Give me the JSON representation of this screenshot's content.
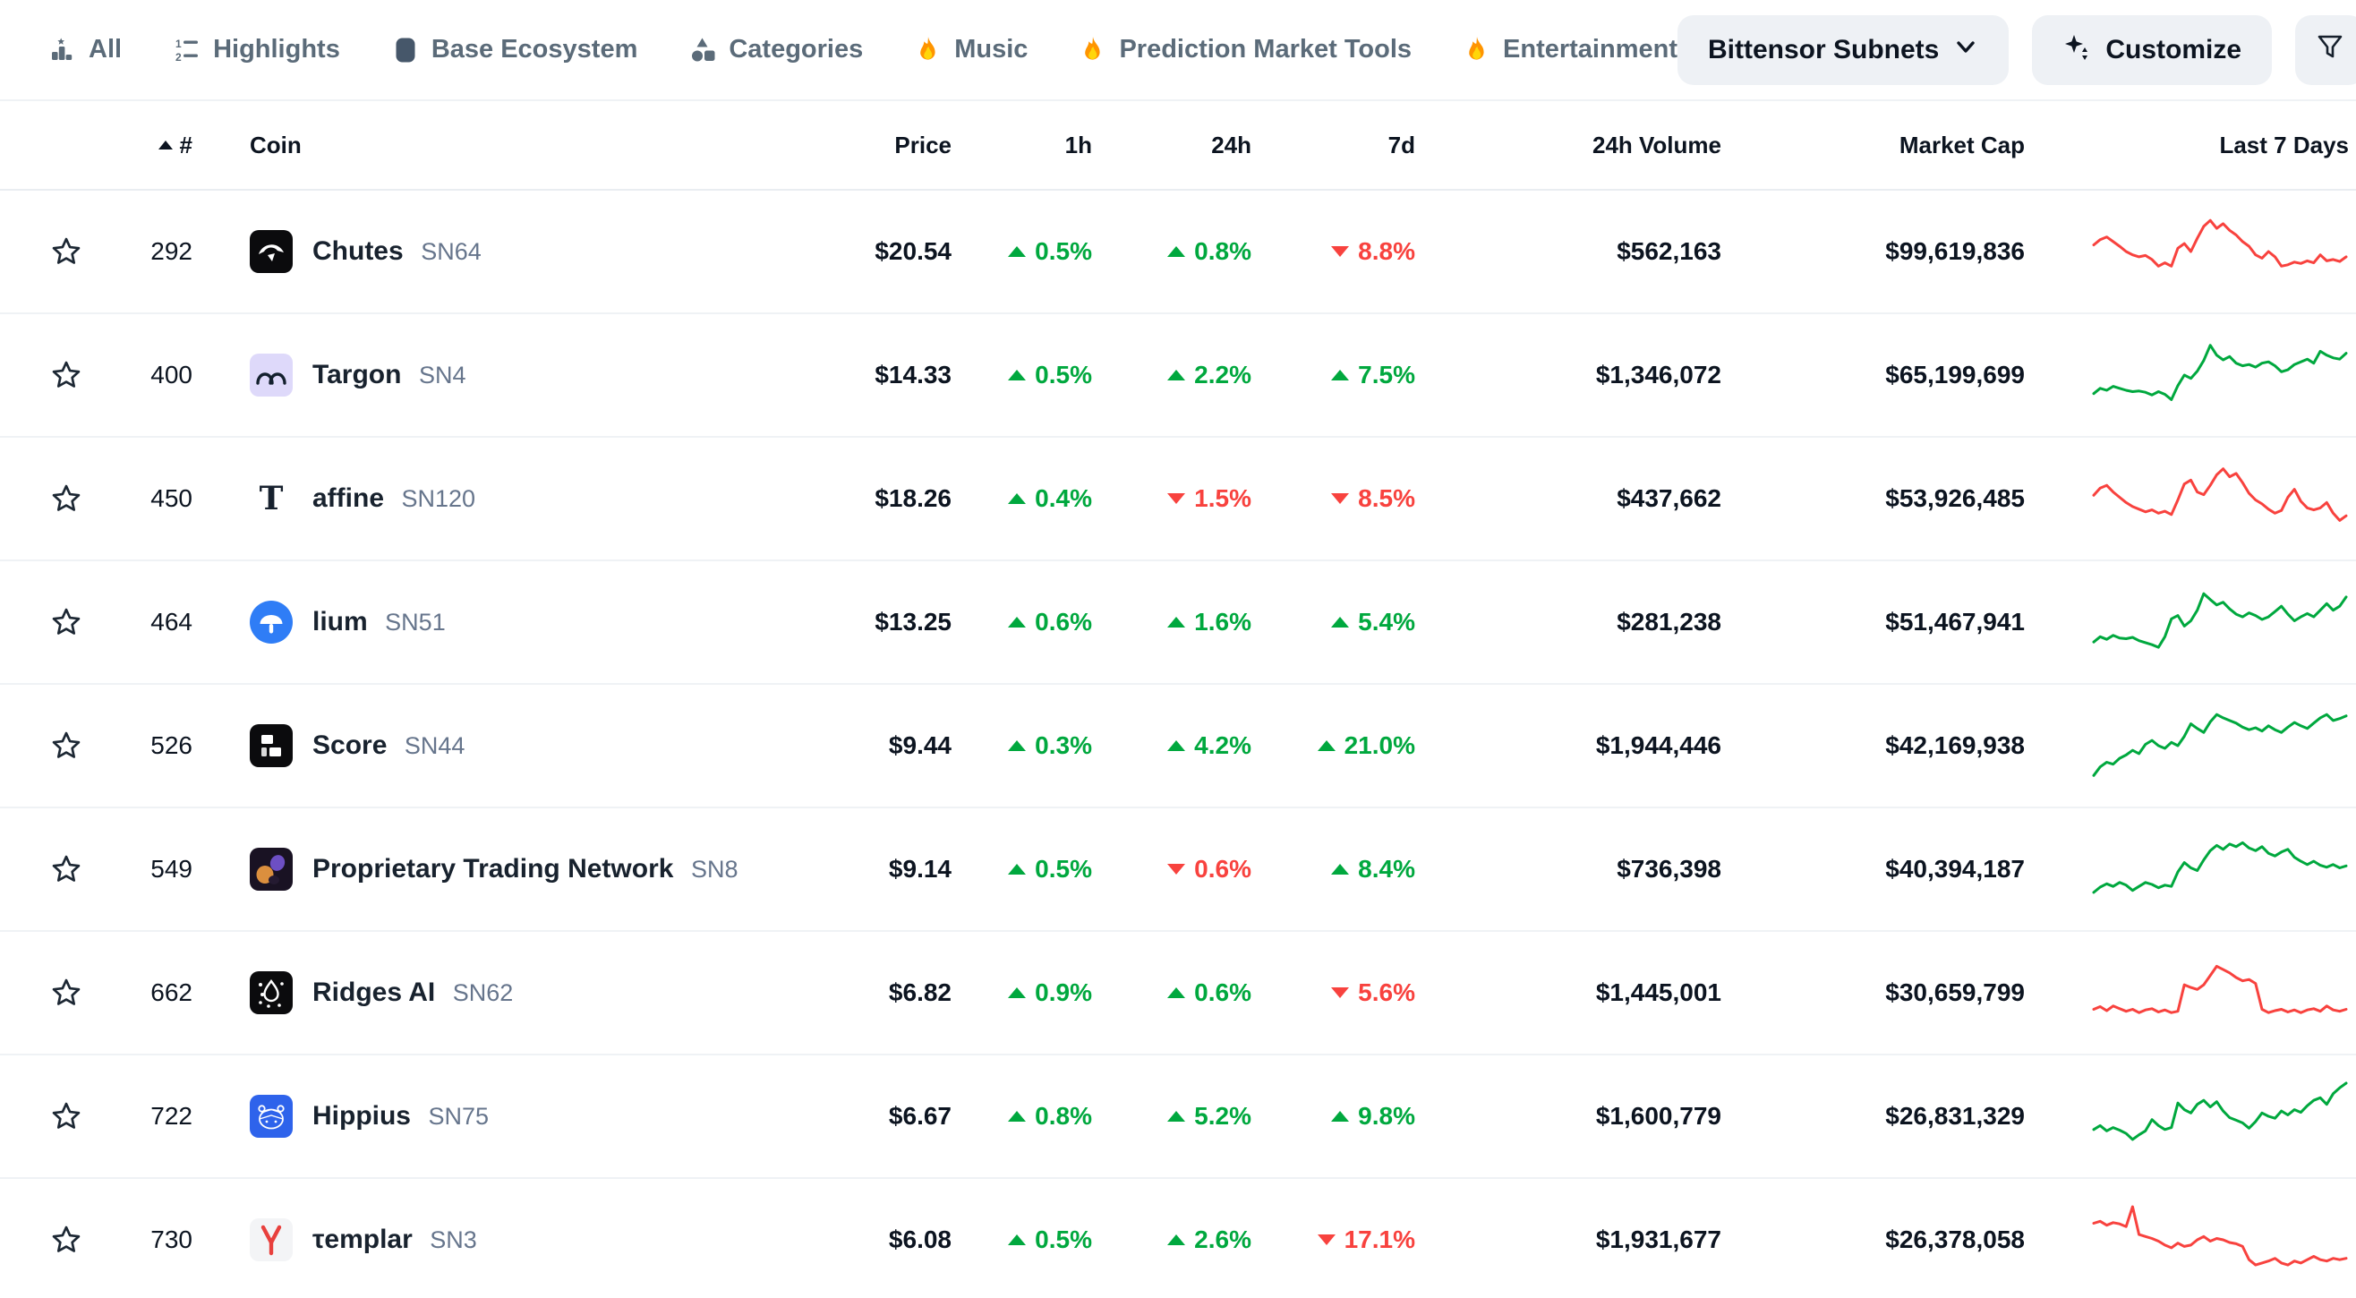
{
  "colors": {
    "up": "#00a83e",
    "down": "#f8423e",
    "accent_pill_bg": "#eef1f5",
    "tab_text": "#5b6b79",
    "divider": "#eff2f5"
  },
  "nav": {
    "tabs": [
      {
        "label": "All",
        "icon": "podium-star-icon"
      },
      {
        "label": "Highlights",
        "icon": "numbered-list-icon"
      },
      {
        "label": "Base Ecosystem",
        "icon": "rounded-square-icon"
      },
      {
        "label": "Categories",
        "icon": "shapes-icon"
      },
      {
        "label": "Music",
        "icon": "fire-icon"
      },
      {
        "label": "Prediction Market Tools",
        "icon": "fire-icon"
      },
      {
        "label": "Entertainment",
        "icon": "fire-icon"
      }
    ],
    "subnet_dropdown": {
      "label": "Bittensor Subnets",
      "icon": "chevron-down-icon"
    },
    "customize_button": {
      "label": "Customize",
      "icon": "sparkle-icon"
    },
    "filter_button": {
      "icon": "funnel-icon"
    }
  },
  "table": {
    "header": {
      "rank": "#",
      "coin": "Coin",
      "price": "Price",
      "h1": "1h",
      "h24": "24h",
      "d7": "7d",
      "volume": "24h Volume",
      "market_cap": "Market Cap",
      "last7d": "Last 7 Days"
    },
    "rows": [
      {
        "rank": "292",
        "name": "Chutes",
        "symbol": "SN64",
        "logo": "chutes-logo",
        "price": "$20.54",
        "h1": {
          "dir": "up",
          "value": "0.5%"
        },
        "h24": {
          "dir": "up",
          "value": "0.8%"
        },
        "d7": {
          "dir": "down",
          "value": "8.8%"
        },
        "volume": "$562,163",
        "market_cap": "$99,619,836",
        "trend": "down",
        "sparkline": [
          60,
          68,
          72,
          65,
          58,
          50,
          45,
          42,
          44,
          38,
          28,
          33,
          28,
          55,
          62,
          50,
          70,
          88,
          97,
          85,
          92,
          82,
          75,
          65,
          58,
          45,
          40,
          50,
          42,
          28,
          30,
          34,
          32,
          36,
          33,
          45,
          36,
          38,
          35,
          42
        ]
      },
      {
        "rank": "400",
        "name": "Targon",
        "symbol": "SN4",
        "logo": "targon-logo",
        "price": "$14.33",
        "h1": {
          "dir": "up",
          "value": "0.5%"
        },
        "h24": {
          "dir": "up",
          "value": "2.2%"
        },
        "d7": {
          "dir": "up",
          "value": "7.5%"
        },
        "volume": "$1,346,072",
        "market_cap": "$65,199,699",
        "trend": "up",
        "sparkline": [
          22,
          30,
          27,
          33,
          30,
          27,
          25,
          26,
          24,
          20,
          25,
          21,
          13,
          34,
          50,
          45,
          56,
          72,
          95,
          80,
          73,
          78,
          68,
          64,
          66,
          62,
          68,
          70,
          64,
          55,
          58,
          66,
          70,
          74,
          68,
          86,
          80,
          76,
          74,
          83
        ]
      },
      {
        "rank": "450",
        "name": "affine",
        "symbol": "SN120",
        "logo": "affine-logo",
        "price": "$18.26",
        "h1": {
          "dir": "up",
          "value": "0.4%"
        },
        "h24": {
          "dir": "down",
          "value": "1.5%"
        },
        "d7": {
          "dir": "down",
          "value": "8.5%"
        },
        "volume": "$437,662",
        "market_cap": "$53,926,485",
        "trend": "down",
        "sparkline": [
          55,
          66,
          70,
          60,
          52,
          44,
          38,
          34,
          30,
          33,
          28,
          31,
          26,
          48,
          72,
          78,
          60,
          56,
          70,
          86,
          95,
          83,
          88,
          74,
          58,
          48,
          42,
          34,
          28,
          32,
          52,
          64,
          46,
          36,
          33,
          36,
          44,
          28,
          17,
          24
        ]
      },
      {
        "rank": "464",
        "name": "lium",
        "symbol": "SN51",
        "logo": "lium-logo",
        "price": "$13.25",
        "h1": {
          "dir": "up",
          "value": "0.6%"
        },
        "h24": {
          "dir": "up",
          "value": "1.6%"
        },
        "d7": {
          "dir": "up",
          "value": "5.4%"
        },
        "volume": "$281,238",
        "market_cap": "$51,467,941",
        "trend": "up",
        "sparkline": [
          20,
          28,
          24,
          30,
          26,
          25,
          27,
          22,
          19,
          16,
          12,
          28,
          55,
          60,
          44,
          52,
          68,
          93,
          84,
          76,
          80,
          70,
          62,
          58,
          64,
          60,
          54,
          58,
          66,
          74,
          62,
          52,
          58,
          63,
          58,
          68,
          78,
          68,
          74,
          88
        ]
      },
      {
        "rank": "526",
        "name": "Score",
        "symbol": "SN44",
        "logo": "score-logo",
        "price": "$9.44",
        "h1": {
          "dir": "up",
          "value": "0.3%"
        },
        "h24": {
          "dir": "up",
          "value": "4.2%"
        },
        "d7": {
          "dir": "up",
          "value": "21.0%"
        },
        "volume": "$1,944,446",
        "market_cap": "$42,169,938",
        "trend": "up",
        "sparkline": [
          5,
          18,
          25,
          22,
          31,
          36,
          43,
          38,
          52,
          58,
          50,
          46,
          55,
          50,
          64,
          83,
          76,
          70,
          86,
          97,
          92,
          88,
          84,
          78,
          74,
          77,
          72,
          80,
          74,
          70,
          78,
          85,
          80,
          76,
          84,
          92,
          97,
          88,
          91,
          95
        ]
      },
      {
        "rank": "549",
        "name": "Proprietary Trading Network",
        "symbol": "SN8",
        "logo": "ptn-logo",
        "price": "$9.14",
        "h1": {
          "dir": "up",
          "value": "0.5%"
        },
        "h24": {
          "dir": "down",
          "value": "0.6%"
        },
        "d7": {
          "dir": "up",
          "value": "8.4%"
        },
        "volume": "$736,398",
        "market_cap": "$40,394,187",
        "trend": "up",
        "sparkline": [
          15,
          23,
          28,
          24,
          30,
          26,
          18,
          24,
          30,
          27,
          22,
          26,
          24,
          46,
          60,
          52,
          48,
          64,
          78,
          86,
          80,
          88,
          84,
          90,
          82,
          78,
          84,
          74,
          70,
          76,
          80,
          68,
          62,
          57,
          62,
          56,
          53,
          57,
          52,
          55
        ]
      },
      {
        "rank": "662",
        "name": "Ridges AI",
        "symbol": "SN62",
        "logo": "ridges-logo",
        "price": "$6.82",
        "h1": {
          "dir": "up",
          "value": "0.9%"
        },
        "h24": {
          "dir": "up",
          "value": "0.6%"
        },
        "d7": {
          "dir": "down",
          "value": "5.6%"
        },
        "volume": "$1,445,001",
        "market_cap": "$30,659,799",
        "trend": "down",
        "sparkline": [
          25,
          29,
          23,
          30,
          26,
          22,
          25,
          20,
          24,
          26,
          21,
          24,
          20,
          22,
          62,
          58,
          55,
          62,
          76,
          90,
          85,
          80,
          73,
          68,
          70,
          64,
          25,
          20,
          23,
          25,
          21,
          24,
          20,
          24,
          26,
          22,
          30,
          24,
          22,
          25
        ]
      },
      {
        "rank": "722",
        "name": "Hippius",
        "symbol": "SN75",
        "logo": "hippius-logo",
        "price": "$6.67",
        "h1": {
          "dir": "up",
          "value": "0.8%"
        },
        "h24": {
          "dir": "up",
          "value": "5.2%"
        },
        "d7": {
          "dir": "up",
          "value": "9.8%"
        },
        "volume": "$1,600,779",
        "market_cap": "$26,831,329",
        "trend": "up",
        "sparkline": [
          30,
          36,
          28,
          33,
          29,
          24,
          15,
          22,
          28,
          45,
          36,
          30,
          33,
          70,
          60,
          55,
          68,
          74,
          64,
          72,
          58,
          48,
          44,
          40,
          32,
          42,
          55,
          50,
          47,
          58,
          52,
          60,
          56,
          66,
          74,
          78,
          68,
          84,
          93,
          100
        ]
      },
      {
        "rank": "730",
        "name": "τemplar",
        "symbol": "SN3",
        "logo": "templar-logo",
        "price": "$6.08",
        "h1": {
          "dir": "up",
          "value": "0.5%"
        },
        "h24": {
          "dir": "up",
          "value": "2.6%"
        },
        "d7": {
          "dir": "down",
          "value": "17.1%"
        },
        "volume": "$1,931,677",
        "market_cap": "$26,378,058",
        "trend": "down",
        "sparkline": [
          75,
          78,
          72,
          76,
          74,
          70,
          100,
          58,
          55,
          52,
          48,
          42,
          38,
          45,
          40,
          42,
          50,
          55,
          48,
          52,
          50,
          46,
          44,
          40,
          20,
          12,
          15,
          18,
          22,
          15,
          12,
          18,
          15,
          20,
          25,
          20,
          18,
          22,
          20,
          22
        ]
      }
    ]
  }
}
